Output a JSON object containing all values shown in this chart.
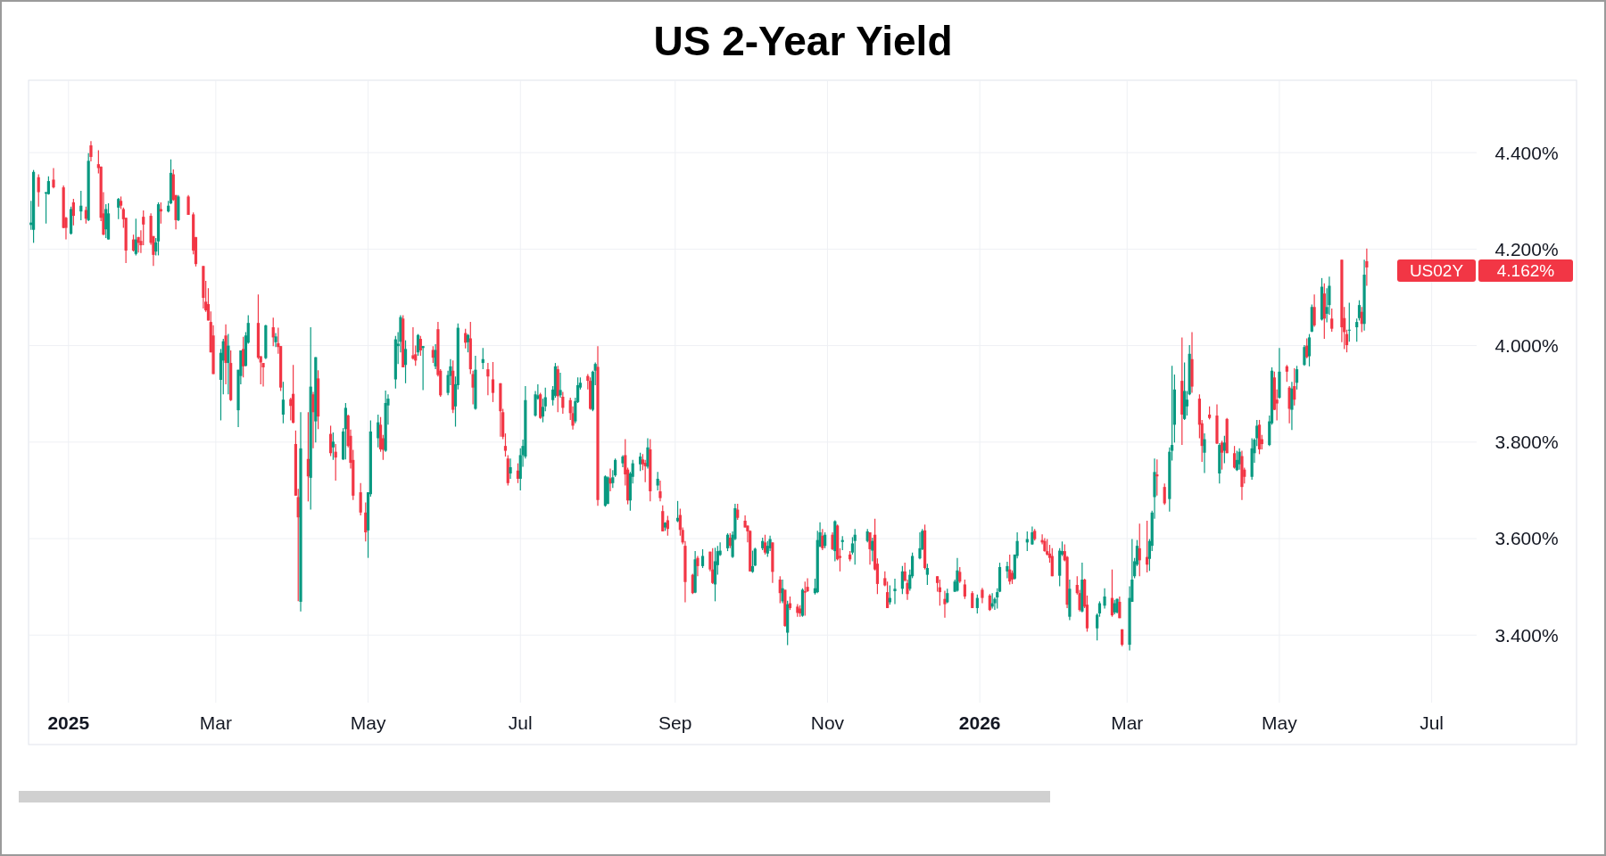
{
  "chart_data": {
    "type": "candlestick",
    "title": "US 2-Year Yield",
    "x": [
      "2024-12-17",
      "2024-12-18",
      "2024-12-20",
      "2024-12-23",
      "2024-12-24",
      "2024-12-26",
      "2024-12-30",
      "2024-12-31",
      "2025-01-02",
      "2025-01-03",
      "2025-01-06",
      "2025-01-08",
      "2025-01-09",
      "2025-01-10",
      "2025-01-13",
      "2025-01-14",
      "2025-01-15",
      "2025-01-16",
      "2025-01-17",
      "2025-01-21",
      "2025-01-22",
      "2025-01-23",
      "2025-01-24",
      "2025-01-27",
      "2025-01-28",
      "2025-01-29",
      "2025-01-30",
      "2025-01-31",
      "2025-02-03",
      "2025-02-04",
      "2025-02-05",
      "2025-02-06",
      "2025-02-07",
      "2025-02-10",
      "2025-02-11",
      "2025-02-12",
      "2025-02-13",
      "2025-02-14",
      "2025-02-18",
      "2025-02-20",
      "2025-02-21",
      "2025-02-24",
      "2025-02-25",
      "2025-02-26",
      "2025-02-27",
      "2025-02-28",
      "2025-03-03",
      "2025-03-04",
      "2025-03-05",
      "2025-03-06",
      "2025-03-07",
      "2025-03-10",
      "2025-03-11",
      "2025-03-12",
      "2025-03-13",
      "2025-03-14",
      "2025-03-18",
      "2025-03-19",
      "2025-03-20",
      "2025-03-21",
      "2025-03-24",
      "2025-03-25",
      "2025-03-26",
      "2025-03-27",
      "2025-03-28",
      "2025-03-31",
      "2025-04-01",
      "2025-04-02",
      "2025-04-03",
      "2025-04-04",
      "2025-04-07",
      "2025-04-08",
      "2025-04-09",
      "2025-04-10",
      "2025-04-11",
      "2025-04-16",
      "2025-04-17",
      "2025-04-18",
      "2025-04-21",
      "2025-04-22",
      "2025-04-23",
      "2025-04-24",
      "2025-04-25",
      "2025-04-28",
      "2025-04-30",
      "2025-05-01",
      "2025-05-02",
      "2025-05-05",
      "2025-05-06",
      "2025-05-07",
      "2025-05-08",
      "2025-05-09",
      "2025-05-12",
      "2025-05-13",
      "2025-05-14",
      "2025-05-15",
      "2025-05-16",
      "2025-05-19",
      "2025-05-20",
      "2025-05-21",
      "2025-05-22",
      "2025-05-23",
      "2025-05-27",
      "2025-05-28",
      "2025-05-29",
      "2025-05-30",
      "2025-06-02",
      "2025-06-03",
      "2025-06-04",
      "2025-06-05",
      "2025-06-06",
      "2025-06-09",
      "2025-06-10",
      "2025-06-11",
      "2025-06-12",
      "2025-06-13",
      "2025-06-16",
      "2025-06-18",
      "2025-06-20",
      "2025-06-23",
      "2025-06-24",
      "2025-06-25",
      "2025-06-26",
      "2025-06-27",
      "2025-06-30",
      "2025-07-01",
      "2025-07-02",
      "2025-07-03",
      "2025-07-07",
      "2025-07-08",
      "2025-07-09",
      "2025-07-10",
      "2025-07-11",
      "2025-07-14",
      "2025-07-15",
      "2025-07-16",
      "2025-07-17",
      "2025-07-18",
      "2025-07-21",
      "2025-07-22",
      "2025-07-23",
      "2025-07-24",
      "2025-07-25",
      "2025-07-28",
      "2025-07-29",
      "2025-07-30",
      "2025-07-31",
      "2025-08-01",
      "2025-08-04",
      "2025-08-05",
      "2025-08-06",
      "2025-08-07",
      "2025-08-08",
      "2025-08-11",
      "2025-08-12",
      "2025-08-13",
      "2025-08-14",
      "2025-08-15",
      "2025-08-18",
      "2025-08-19",
      "2025-08-20",
      "2025-08-21",
      "2025-08-22",
      "2025-08-25",
      "2025-08-26",
      "2025-08-27",
      "2025-08-28",
      "2025-08-29",
      "2025-09-02",
      "2025-09-03",
      "2025-09-04",
      "2025-09-05",
      "2025-09-08",
      "2025-09-09",
      "2025-09-10",
      "2025-09-12",
      "2025-09-15",
      "2025-09-16",
      "2025-09-17",
      "2025-09-18",
      "2025-09-19",
      "2025-09-22",
      "2025-09-23",
      "2025-09-24",
      "2025-09-25",
      "2025-09-26",
      "2025-09-29",
      "2025-09-30",
      "2025-10-01",
      "2025-10-02",
      "2025-10-03",
      "2025-10-06",
      "2025-10-07",
      "2025-10-08",
      "2025-10-09",
      "2025-10-10",
      "2025-10-13",
      "2025-10-14",
      "2025-10-15",
      "2025-10-16",
      "2025-10-17",
      "2025-10-20",
      "2025-10-21",
      "2025-10-22",
      "2025-10-23",
      "2025-10-24",
      "2025-10-27",
      "2025-10-28",
      "2025-10-29",
      "2025-10-30",
      "2025-10-31",
      "2025-11-03",
      "2025-11-04",
      "2025-11-05",
      "2025-11-06",
      "2025-11-07",
      "2025-11-10",
      "2025-11-11",
      "2025-11-12",
      "2025-11-17",
      "2025-11-18",
      "2025-11-19",
      "2025-11-20",
      "2025-11-21",
      "2025-11-24",
      "2025-11-25",
      "2025-11-26",
      "2025-11-28",
      "2025-12-01",
      "2025-12-02",
      "2025-12-03",
      "2025-12-04",
      "2025-12-05",
      "2025-12-08",
      "2025-12-09",
      "2025-12-10",
      "2025-12-11",
      "2025-12-15",
      "2025-12-16",
      "2025-12-18",
      "2025-12-19",
      "2025-12-22",
      "2025-12-23",
      "2025-12-24",
      "2025-12-26",
      "2025-12-29",
      "2025-12-31",
      "2026-01-02",
      "2026-01-05",
      "2026-01-06",
      "2026-01-07",
      "2026-01-08",
      "2026-01-09",
      "2026-01-12",
      "2026-01-13",
      "2026-01-14",
      "2026-01-15",
      "2026-01-16",
      "2026-01-20",
      "2026-01-22",
      "2026-01-23",
      "2026-01-26",
      "2026-01-27",
      "2026-01-28",
      "2026-01-29",
      "2026-01-30",
      "2026-02-02",
      "2026-02-03",
      "2026-02-04",
      "2026-02-05",
      "2026-02-06",
      "2026-02-09",
      "2026-02-10",
      "2026-02-11",
      "2026-02-12",
      "2026-02-13",
      "2026-02-17",
      "2026-02-18",
      "2026-02-20",
      "2026-02-23",
      "2026-02-24",
      "2026-02-25",
      "2026-02-26",
      "2026-02-27",
      "2026-03-02",
      "2026-03-03",
      "2026-03-04",
      "2026-03-05",
      "2026-03-06",
      "2026-03-09",
      "2026-03-10",
      "2026-03-11",
      "2026-03-12",
      "2026-03-13",
      "2026-03-16",
      "2026-03-18",
      "2026-03-19",
      "2026-03-20",
      "2026-03-23",
      "2026-03-24",
      "2026-03-25",
      "2026-03-26",
      "2026-03-27",
      "2026-03-30",
      "2026-03-31",
      "2026-04-01",
      "2026-04-03",
      "2026-04-06",
      "2026-04-07",
      "2026-04-08",
      "2026-04-09",
      "2026-04-10",
      "2026-04-13",
      "2026-04-14",
      "2026-04-15",
      "2026-04-16",
      "2026-04-17",
      "2026-04-20",
      "2026-04-21",
      "2026-04-22",
      "2026-04-23",
      "2026-04-24",
      "2026-04-27",
      "2026-04-28",
      "2026-04-29",
      "2026-04-30",
      "2026-05-01",
      "2026-05-04",
      "2026-05-05",
      "2026-05-06",
      "2026-05-07",
      "2026-05-08",
      "2026-05-11",
      "2026-05-12",
      "2026-05-13",
      "2026-05-14",
      "2026-05-15",
      "2026-05-18",
      "2026-05-19",
      "2026-05-20",
      "2026-05-21",
      "2026-05-22",
      "2026-05-26",
      "2026-05-27",
      "2026-05-28",
      "2026-05-29",
      "2026-06-01",
      "2026-06-02",
      "2026-06-03",
      "2026-06-04",
      "2026-06-05"
    ],
    "ohlc": [
      [
        4.25,
        4.3,
        4.24,
        4.255
      ],
      [
        4.24,
        4.364,
        4.213,
        4.36
      ],
      [
        4.349,
        4.355,
        4.288,
        4.318
      ],
      [
        4.315,
        4.318,
        4.253,
        4.318
      ],
      [
        4.314,
        4.351,
        4.313,
        4.341
      ],
      [
        4.344,
        4.368,
        4.326,
        4.328
      ],
      [
        4.328,
        4.332,
        4.243,
        4.244
      ],
      [
        4.265,
        4.267,
        4.22,
        4.244
      ],
      [
        4.232,
        4.288,
        4.23,
        4.283
      ],
      [
        4.297,
        4.304,
        4.249,
        4.269
      ],
      [
        4.278,
        4.321,
        4.26,
        4.29
      ],
      [
        4.281,
        4.288,
        4.253,
        4.263
      ],
      [
        4.26,
        4.399,
        4.258,
        4.383
      ],
      [
        4.415,
        4.424,
        4.382,
        4.391
      ],
      [
        4.376,
        4.405,
        4.357,
        4.368
      ],
      [
        4.371,
        4.371,
        4.258,
        4.265
      ],
      [
        4.274,
        4.318,
        4.229,
        4.23
      ],
      [
        4.241,
        4.293,
        4.223,
        4.283
      ],
      [
        4.22,
        4.295,
        4.22,
        4.274
      ],
      [
        4.286,
        4.306,
        4.262,
        4.304
      ],
      [
        4.3,
        4.309,
        4.283,
        4.29
      ],
      [
        4.283,
        4.286,
        4.244,
        4.262
      ],
      [
        4.265,
        4.265,
        4.171,
        4.197
      ],
      [
        4.22,
        4.23,
        4.195,
        4.197
      ],
      [
        4.19,
        4.263,
        4.187,
        4.22
      ],
      [
        4.225,
        4.225,
        4.193,
        4.213
      ],
      [
        4.217,
        4.239,
        4.192,
        4.208
      ],
      [
        4.267,
        4.28,
        4.208,
        4.251
      ],
      [
        4.269,
        4.274,
        4.209,
        4.213
      ],
      [
        4.227,
        4.227,
        4.165,
        4.188
      ],
      [
        4.195,
        4.223,
        4.187,
        4.214
      ],
      [
        4.216,
        4.297,
        4.187,
        4.293
      ],
      [
        4.283,
        4.297,
        4.253,
        4.278
      ],
      [
        4.278,
        4.3,
        4.276,
        4.29
      ],
      [
        4.295,
        4.386,
        4.293,
        4.358
      ],
      [
        4.355,
        4.365,
        4.3,
        4.302
      ],
      [
        4.312,
        4.312,
        4.241,
        4.26
      ],
      [
        4.26,
        4.312,
        4.258,
        4.309
      ],
      [
        4.309,
        4.312,
        4.271,
        4.271
      ],
      [
        4.272,
        4.276,
        4.189,
        4.197
      ],
      [
        4.225,
        4.225,
        4.164,
        4.169
      ],
      [
        4.165,
        4.165,
        4.077,
        4.099
      ],
      [
        4.091,
        4.134,
        4.07,
        4.073
      ],
      [
        4.086,
        4.119,
        4.052,
        4.052
      ],
      [
        4.049,
        4.071,
        3.986,
        3.986
      ],
      [
        4.021,
        4.042,
        3.941,
        3.941
      ],
      [
        3.929,
        3.993,
        3.845,
        3.985
      ],
      [
        3.969,
        4.014,
        3.899,
        4.009
      ],
      [
        4.021,
        4.044,
        3.92,
        3.964
      ],
      [
        3.964,
        4.024,
        3.899,
        4.0
      ],
      [
        3.964,
        3.99,
        3.885,
        3.887
      ],
      [
        3.866,
        3.95,
        3.831,
        3.95
      ],
      [
        3.937,
        3.99,
        3.92,
        3.99
      ],
      [
        3.993,
        4.018,
        3.934,
        3.957
      ],
      [
        3.958,
        4.028,
        3.957,
        4.021
      ],
      [
        4.006,
        4.063,
        4.004,
        4.047
      ],
      [
        4.047,
        4.106,
        3.972,
        3.975
      ],
      [
        3.978,
        3.978,
        3.92,
        3.965
      ],
      [
        3.964,
        3.964,
        3.915,
        3.955
      ],
      [
        3.974,
        4.043,
        3.972,
        4.042
      ],
      [
        4.038,
        4.058,
        3.999,
        4.017
      ],
      [
        4.007,
        4.026,
        3.997,
        4.019
      ],
      [
        4.005,
        4.037,
        3.983,
        3.997
      ],
      [
        3.999,
        3.999,
        3.906,
        3.913
      ],
      [
        3.857,
        3.925,
        3.839,
        3.888
      ],
      [
        3.889,
        3.892,
        3.845,
        3.875
      ],
      [
        3.9,
        3.96,
        3.839,
        3.84
      ],
      [
        3.796,
        3.824,
        3.689,
        3.689
      ],
      [
        3.686,
        3.703,
        3.47,
        3.644
      ],
      [
        3.469,
        3.862,
        3.449,
        3.787
      ],
      [
        3.765,
        3.862,
        3.677,
        3.729
      ],
      [
        3.726,
        4.038,
        3.66,
        3.915
      ],
      [
        3.899,
        3.904,
        3.787,
        3.862
      ],
      [
        3.843,
        3.976,
        3.799,
        3.976
      ],
      [
        3.932,
        3.949,
        3.827,
        3.853
      ],
      [
        3.817,
        3.834,
        3.771,
        3.777
      ],
      [
        3.789,
        3.82,
        3.763,
        3.801
      ],
      [
        3.78,
        3.796,
        3.72,
        3.768
      ],
      [
        3.764,
        3.829,
        3.763,
        3.822
      ],
      [
        3.827,
        3.881,
        3.764,
        3.871
      ],
      [
        3.855,
        3.857,
        3.789,
        3.792
      ],
      [
        3.813,
        3.826,
        3.745,
        3.757
      ],
      [
        3.763,
        3.784,
        3.68,
        3.689
      ],
      [
        3.696,
        3.715,
        3.648,
        3.654
      ],
      [
        3.654,
        3.675,
        3.594,
        3.613
      ],
      [
        3.617,
        3.696,
        3.56,
        3.696
      ],
      [
        3.692,
        3.845,
        3.687,
        3.822
      ],
      [
        3.808,
        3.857,
        3.789,
        3.841
      ],
      [
        3.836,
        3.852,
        3.78,
        3.785
      ],
      [
        3.808,
        3.815,
        3.763,
        3.784
      ],
      [
        3.782,
        3.907,
        3.78,
        3.881
      ],
      [
        3.876,
        3.899,
        3.836,
        3.89
      ],
      [
        3.93,
        4.02,
        3.911,
        4.013
      ],
      [
        3.999,
        4.028,
        3.962,
        4.004
      ],
      [
        4.008,
        4.063,
        3.986,
        4.059
      ],
      [
        4.056,
        4.063,
        3.955,
        3.955
      ],
      [
        3.96,
        4.011,
        3.922,
        3.993
      ],
      [
        3.98,
        4.038,
        3.971,
        3.973
      ],
      [
        3.982,
        4.0,
        3.958,
        3.969
      ],
      [
        3.986,
        4.024,
        3.979,
        4.022
      ],
      [
        4.014,
        4.02,
        3.979,
        3.99
      ],
      [
        3.995,
        3.999,
        3.908,
        3.999
      ],
      [
        3.991,
        3.999,
        3.964,
        3.975
      ],
      [
        3.957,
        4.003,
        3.951,
        3.991
      ],
      [
        4.034,
        4.049,
        3.936,
        3.939
      ],
      [
        3.948,
        3.951,
        3.894,
        3.897
      ],
      [
        3.902,
        3.948,
        3.897,
        3.939
      ],
      [
        3.937,
        3.972,
        3.918,
        3.957
      ],
      [
        3.948,
        3.969,
        3.86,
        3.867
      ],
      [
        3.874,
        3.936,
        3.832,
        3.92
      ],
      [
        3.918,
        4.046,
        3.909,
        4.037
      ],
      [
        4.026,
        4.035,
        3.994,
        4.006
      ],
      [
        4.007,
        4.024,
        3.986,
        4.022
      ],
      [
        4.015,
        4.049,
        3.941,
        3.951
      ],
      [
        3.941,
        3.948,
        3.878,
        3.913
      ],
      [
        3.869,
        3.979,
        3.867,
        3.95
      ],
      [
        3.964,
        3.995,
        3.951,
        3.972
      ],
      [
        3.951,
        3.964,
        3.897,
        3.936
      ],
      [
        3.93,
        3.966,
        3.883,
        3.902
      ],
      [
        3.922,
        3.922,
        3.811,
        3.864
      ],
      [
        3.862,
        3.869,
        3.806,
        3.811
      ],
      [
        3.792,
        3.818,
        3.77,
        3.782
      ],
      [
        3.766,
        3.773,
        3.71,
        3.715
      ],
      [
        3.735,
        3.766,
        3.724,
        3.748
      ],
      [
        3.741,
        3.756,
        3.715,
        3.724
      ],
      [
        3.724,
        3.787,
        3.7,
        3.773
      ],
      [
        3.773,
        3.805,
        3.749,
        3.792
      ],
      [
        3.77,
        3.916,
        3.766,
        3.887
      ],
      [
        3.855,
        3.906,
        3.853,
        3.899
      ],
      [
        3.89,
        3.92,
        3.888,
        3.897
      ],
      [
        3.899,
        3.902,
        3.848,
        3.85
      ],
      [
        3.853,
        3.89,
        3.841,
        3.873
      ],
      [
        3.874,
        3.913,
        3.864,
        3.893
      ],
      [
        3.887,
        3.916,
        3.876,
        3.909
      ],
      [
        3.896,
        3.964,
        3.892,
        3.957
      ],
      [
        3.951,
        3.958,
        3.862,
        3.895
      ],
      [
        3.897,
        3.944,
        3.892,
        3.908
      ],
      [
        3.894,
        3.904,
        3.859,
        3.871
      ],
      [
        3.887,
        3.892,
        3.846,
        3.86
      ],
      [
        3.86,
        3.874,
        3.826,
        3.834
      ],
      [
        3.843,
        3.892,
        3.839,
        3.885
      ],
      [
        3.883,
        3.934,
        3.881,
        3.918
      ],
      [
        3.913,
        3.934,
        3.909,
        3.923
      ],
      [
        3.937,
        3.941,
        3.909,
        3.927
      ],
      [
        3.927,
        3.934,
        3.867,
        3.869
      ],
      [
        3.867,
        3.948,
        3.864,
        3.946
      ],
      [
        3.948,
        3.965,
        3.918,
        3.962
      ],
      [
        3.956,
        3.999,
        3.668,
        3.68
      ],
      [
        3.668,
        3.731,
        3.666,
        3.729
      ],
      [
        3.672,
        3.729,
        3.671,
        3.727
      ],
      [
        3.725,
        3.745,
        3.698,
        3.714
      ],
      [
        3.715,
        3.742,
        3.705,
        3.727
      ],
      [
        3.731,
        3.766,
        3.728,
        3.763
      ],
      [
        3.756,
        3.773,
        3.748,
        3.77
      ],
      [
        3.773,
        3.806,
        3.71,
        3.733
      ],
      [
        3.743,
        3.747,
        3.671,
        3.679
      ],
      [
        3.679,
        3.738,
        3.658,
        3.735
      ],
      [
        3.728,
        3.763,
        3.714,
        3.756
      ],
      [
        3.754,
        3.778,
        3.74,
        3.77
      ],
      [
        3.764,
        3.775,
        3.742,
        3.754
      ],
      [
        3.757,
        3.763,
        3.717,
        3.75
      ],
      [
        3.749,
        3.808,
        3.745,
        3.789
      ],
      [
        3.785,
        3.806,
        3.677,
        3.698
      ],
      [
        3.71,
        3.738,
        3.7,
        3.724
      ],
      [
        3.698,
        3.72,
        3.677,
        3.684
      ],
      [
        3.657,
        3.669,
        3.615,
        3.615
      ],
      [
        3.623,
        3.634,
        3.616,
        3.633
      ],
      [
        3.638,
        3.647,
        3.606,
        3.62
      ],
      [
        3.636,
        3.678,
        3.634,
        3.643
      ],
      [
        3.649,
        3.662,
        3.606,
        3.618
      ],
      [
        3.618,
        3.623,
        3.588,
        3.592
      ],
      [
        3.585,
        3.595,
        3.468,
        3.51
      ],
      [
        3.525,
        3.527,
        3.485,
        3.487
      ],
      [
        3.488,
        3.574,
        3.487,
        3.557
      ],
      [
        3.56,
        3.564,
        3.522,
        3.543
      ],
      [
        3.543,
        3.578,
        3.539,
        3.564
      ],
      [
        3.573,
        3.573,
        3.532,
        3.536
      ],
      [
        3.536,
        3.58,
        3.506,
        3.508
      ],
      [
        3.505,
        3.581,
        3.47,
        3.553
      ],
      [
        3.545,
        3.585,
        3.525,
        3.574
      ],
      [
        3.566,
        3.592,
        3.564,
        3.575
      ],
      [
        3.58,
        3.611,
        3.574,
        3.608
      ],
      [
        3.602,
        3.611,
        3.58,
        3.585
      ],
      [
        3.562,
        3.615,
        3.56,
        3.608
      ],
      [
        3.599,
        3.672,
        3.597,
        3.663
      ],
      [
        3.66,
        3.672,
        3.639,
        3.643
      ],
      [
        3.637,
        3.648,
        3.623,
        3.623
      ],
      [
        3.627,
        3.627,
        3.592,
        3.615
      ],
      [
        3.616,
        3.617,
        3.532,
        3.532
      ],
      [
        3.531,
        3.575,
        3.529,
        3.543
      ],
      [
        3.544,
        3.581,
        3.543,
        3.579
      ],
      [
        3.58,
        3.602,
        3.576,
        3.595
      ],
      [
        3.592,
        3.608,
        3.567,
        3.571
      ],
      [
        3.569,
        3.595,
        3.562,
        3.585
      ],
      [
        3.58,
        3.606,
        3.574,
        3.599
      ],
      [
        3.592,
        3.592,
        3.508,
        3.531
      ],
      [
        3.515,
        3.522,
        3.466,
        3.487
      ],
      [
        3.47,
        3.515,
        3.466,
        3.497
      ],
      [
        3.494,
        3.494,
        3.417,
        3.419
      ],
      [
        3.405,
        3.471,
        3.379,
        3.464
      ],
      [
        3.466,
        3.48,
        3.452,
        3.456
      ],
      [
        3.459,
        3.464,
        3.438,
        3.446
      ],
      [
        3.455,
        3.462,
        3.438,
        3.445
      ],
      [
        3.44,
        3.497,
        3.438,
        3.494
      ],
      [
        3.491,
        3.511,
        3.44,
        3.488
      ],
      [
        3.5,
        3.518,
        3.489,
        3.491
      ],
      [
        3.487,
        3.517,
        3.484,
        3.497
      ],
      [
        3.489,
        3.616,
        3.487,
        3.597
      ],
      [
        3.583,
        3.634,
        3.583,
        3.613
      ],
      [
        3.606,
        3.62,
        3.576,
        3.58
      ],
      [
        3.585,
        3.613,
        3.58,
        3.608
      ],
      [
        3.608,
        3.613,
        3.576,
        3.578
      ],
      [
        3.574,
        3.638,
        3.553,
        3.636
      ],
      [
        3.627,
        3.629,
        3.555,
        3.557
      ],
      [
        3.564,
        3.58,
        3.532,
        3.56
      ],
      [
        3.593,
        3.605,
        3.576,
        3.597
      ],
      [
        3.567,
        3.574,
        3.553,
        3.557
      ],
      [
        3.571,
        3.603,
        3.567,
        3.59
      ],
      [
        3.595,
        3.62,
        3.546,
        3.608
      ],
      [
        3.595,
        3.62,
        3.592,
        3.615
      ],
      [
        3.613,
        3.613,
        3.546,
        3.578
      ],
      [
        3.575,
        3.602,
        3.553,
        3.595
      ],
      [
        3.608,
        3.641,
        3.534,
        3.536
      ],
      [
        3.548,
        3.559,
        3.485,
        3.506
      ],
      [
        3.518,
        3.532,
        3.501,
        3.503
      ],
      [
        3.489,
        3.511,
        3.456,
        3.456
      ],
      [
        3.468,
        3.503,
        3.463,
        3.477
      ],
      [
        3.491,
        3.517,
        3.464,
        3.496
      ],
      [
        3.496,
        3.543,
        3.485,
        3.532
      ],
      [
        3.532,
        3.55,
        3.511,
        3.513
      ],
      [
        3.508,
        3.515,
        3.473,
        3.485
      ],
      [
        3.496,
        3.536,
        3.492,
        3.525
      ],
      [
        3.522,
        3.571,
        3.518,
        3.564
      ],
      [
        3.559,
        3.613,
        3.557,
        3.58
      ],
      [
        3.578,
        3.62,
        3.576,
        3.616
      ],
      [
        3.617,
        3.629,
        3.536,
        3.539
      ],
      [
        3.525,
        3.548,
        3.504,
        3.539
      ],
      [
        3.522,
        3.522,
        3.49,
        3.508
      ],
      [
        3.499,
        3.515,
        3.461,
        3.489
      ],
      [
        3.475,
        3.492,
        3.436,
        3.464
      ],
      [
        3.468,
        3.496,
        3.466,
        3.487
      ],
      [
        3.49,
        3.515,
        3.489,
        3.511
      ],
      [
        3.492,
        3.56,
        3.49,
        3.534
      ],
      [
        3.531,
        3.541,
        3.508,
        3.511
      ],
      [
        3.505,
        3.515,
        3.475,
        3.48
      ],
      [
        3.487,
        3.491,
        3.456,
        3.456
      ],
      [
        3.456,
        3.484,
        3.445,
        3.477
      ],
      [
        3.494,
        3.498,
        3.466,
        3.477
      ],
      [
        3.482,
        3.485,
        3.45,
        3.452
      ],
      [
        3.459,
        3.487,
        3.455,
        3.466
      ],
      [
        3.466,
        3.478,
        3.452,
        3.475
      ],
      [
        3.478,
        3.497,
        3.455,
        3.489
      ],
      [
        3.49,
        3.55,
        3.489,
        3.541
      ],
      [
        3.532,
        3.552,
        3.518,
        3.543
      ],
      [
        3.536,
        3.567,
        3.505,
        3.511
      ],
      [
        3.529,
        3.534,
        3.506,
        3.515
      ],
      [
        3.517,
        3.567,
        3.515,
        3.567
      ],
      [
        3.564,
        3.613,
        3.559,
        3.595
      ],
      [
        3.592,
        3.615,
        3.574,
        3.599
      ],
      [
        3.588,
        3.625,
        3.587,
        3.613
      ],
      [
        3.616,
        3.62,
        3.596,
        3.599
      ],
      [
        3.597,
        3.609,
        3.588,
        3.592
      ],
      [
        3.595,
        3.601,
        3.573,
        3.574
      ],
      [
        3.574,
        3.599,
        3.565,
        3.567
      ],
      [
        3.569,
        3.587,
        3.55,
        3.56
      ],
      [
        3.564,
        3.58,
        3.522,
        3.522
      ],
      [
        3.523,
        3.58,
        3.501,
        3.575
      ],
      [
        3.567,
        3.594,
        3.564,
        3.574
      ],
      [
        3.574,
        3.588,
        3.553,
        3.555
      ],
      [
        3.562,
        3.564,
        3.456,
        3.463
      ],
      [
        3.438,
        3.515,
        3.431,
        3.496
      ],
      [
        3.504,
        3.522,
        3.484,
        3.487
      ],
      [
        3.487,
        3.494,
        3.449,
        3.452
      ],
      [
        3.449,
        3.55,
        3.447,
        3.515
      ],
      [
        3.515,
        3.517,
        3.456,
        3.459
      ],
      [
        3.463,
        3.482,
        3.407,
        3.414
      ],
      [
        3.414,
        3.445,
        3.389,
        3.442
      ],
      [
        3.445,
        3.47,
        3.438,
        3.466
      ],
      [
        3.461,
        3.497,
        3.455,
        3.48
      ],
      [
        3.477,
        3.536,
        3.438,
        3.441
      ],
      [
        3.447,
        3.473,
        3.443,
        3.466
      ],
      [
        3.447,
        3.476,
        3.445,
        3.475
      ],
      [
        3.469,
        3.48,
        3.435,
        3.435
      ],
      [
        3.412,
        3.412,
        3.377,
        3.38
      ],
      [
        3.38,
        3.501,
        3.368,
        3.477
      ],
      [
        3.469,
        3.599,
        3.469,
        3.515
      ],
      [
        3.522,
        3.56,
        3.518,
        3.553
      ],
      [
        3.546,
        3.597,
        3.543,
        3.585
      ],
      [
        3.58,
        3.631,
        3.522,
        3.555
      ],
      [
        3.562,
        3.637,
        3.53,
        3.546
      ],
      [
        3.558,
        3.599,
        3.533,
        3.595
      ],
      [
        3.585,
        3.658,
        3.574,
        3.654
      ],
      [
        3.686,
        3.766,
        3.641,
        3.738
      ],
      [
        3.733,
        3.764,
        3.689,
        3.729
      ],
      [
        3.707,
        3.714,
        3.67,
        3.673
      ],
      [
        3.682,
        3.789,
        3.656,
        3.78
      ],
      [
        3.782,
        3.958,
        3.762,
        3.794
      ],
      [
        3.836,
        3.94,
        3.799,
        3.909
      ],
      [
        3.927,
        4.017,
        3.794,
        3.857
      ],
      [
        3.848,
        3.965,
        3.846,
        3.906
      ],
      [
        3.874,
        3.906,
        3.855,
        3.888
      ],
      [
        3.899,
        4.001,
        3.897,
        3.983
      ],
      [
        3.972,
        4.028,
        3.902,
        3.915
      ],
      [
        3.89,
        3.899,
        3.808,
        3.836
      ],
      [
        3.839,
        3.846,
        3.759,
        3.792
      ],
      [
        3.778,
        3.818,
        3.736,
        3.806
      ],
      [
        3.857,
        3.874,
        3.847,
        3.85
      ],
      [
        3.855,
        3.878,
        3.796,
        3.797
      ],
      [
        3.735,
        3.798,
        3.714,
        3.794
      ],
      [
        3.799,
        3.803,
        3.743,
        3.778
      ],
      [
        3.782,
        3.813,
        3.756,
        3.799
      ],
      [
        3.848,
        3.85,
        3.777,
        3.777
      ],
      [
        3.777,
        3.792,
        3.745,
        3.747
      ],
      [
        3.742,
        3.782,
        3.74,
        3.763
      ],
      [
        3.754,
        3.787,
        3.743,
        3.78
      ],
      [
        3.771,
        3.782,
        3.68,
        3.707
      ],
      [
        3.743,
        3.747,
        3.714,
        3.728
      ],
      [
        3.728,
        3.808,
        3.722,
        3.787
      ],
      [
        3.777,
        3.808,
        3.757,
        3.805
      ],
      [
        3.808,
        3.846,
        3.792,
        3.834
      ],
      [
        3.836,
        3.846,
        3.775,
        3.785
      ],
      [
        3.806,
        3.815,
        3.785,
        3.796
      ],
      [
        3.794,
        3.855,
        3.792,
        3.843
      ],
      [
        3.839,
        3.955,
        3.836,
        3.948
      ],
      [
        3.934,
        3.946,
        3.866,
        3.867
      ],
      [
        3.888,
        3.909,
        3.845,
        3.88
      ],
      [
        3.892,
        3.995,
        3.89,
        3.946
      ],
      [
        3.957,
        3.96,
        3.925,
        3.946
      ],
      [
        3.913,
        3.916,
        3.839,
        3.869
      ],
      [
        3.867,
        3.925,
        3.825,
        3.911
      ],
      [
        3.916,
        3.953,
        3.876,
        3.888
      ],
      [
        3.923,
        3.958,
        3.909,
        3.951
      ],
      [
        3.96,
        4.001,
        3.958,
        3.997
      ],
      [
        4.0,
        4.015,
        3.974,
        3.976
      ],
      [
        3.978,
        4.024,
        3.957,
        4.017
      ],
      [
        4.029,
        4.085,
        4.028,
        4.08
      ],
      [
        4.08,
        4.106,
        4.039,
        4.042
      ],
      [
        4.054,
        4.14,
        4.052,
        4.122
      ],
      [
        4.108,
        4.129,
        4.014,
        4.056
      ],
      [
        4.066,
        4.119,
        4.048,
        4.08
      ],
      [
        4.084,
        4.143,
        4.064,
        4.124
      ],
      [
        4.056,
        4.077,
        4.029,
        4.035
      ],
      [
        4.178,
        4.178,
        4.007,
        4.038
      ],
      [
        4.057,
        4.08,
        3.993,
        4.028
      ],
      [
        4.024,
        4.033,
        3.986,
        4.001
      ],
      [
        4.031,
        4.089,
        4.008,
        4.033
      ],
      [
        4.038,
        4.056,
        4.008,
        4.049
      ],
      [
        4.057,
        4.094,
        4.052,
        4.084
      ],
      [
        4.07,
        4.08,
        4.028,
        4.045
      ],
      [
        4.045,
        4.178,
        4.031,
        4.147
      ],
      [
        4.175,
        4.201,
        4.124,
        4.162
      ]
    ],
    "xlim": [
      "2024-12-16",
      "2026-07-19"
    ],
    "ylim": [
      3.26,
      4.55
    ],
    "xticks": [
      {
        "value": "2025-01-01",
        "label": "2025"
      },
      {
        "value": "2025-03-01",
        "label": "Mar"
      },
      {
        "value": "2025-05-01",
        "label": "May"
      },
      {
        "value": "2025-07-01",
        "label": "Jul"
      },
      {
        "value": "2025-09-01",
        "label": "Sep"
      },
      {
        "value": "2025-11-01",
        "label": "Nov"
      },
      {
        "value": "2026-01-01",
        "label": "2026"
      },
      {
        "value": "2026-03-01",
        "label": "Mar"
      },
      {
        "value": "2026-05-01",
        "label": "May"
      },
      {
        "value": "2026-07-01",
        "label": "Jul"
      }
    ],
    "yticks": [
      {
        "value": 3.4,
        "label": "3.400%"
      },
      {
        "value": 3.6,
        "label": "3.600%"
      },
      {
        "value": 3.8,
        "label": "3.800%"
      },
      {
        "value": 4.0,
        "label": "4.000%"
      },
      {
        "value": 4.2,
        "label": "4.200%"
      },
      {
        "value": 4.4,
        "label": "4.400%"
      }
    ],
    "grid": true,
    "annotations": [
      "US02Y",
      "4.162%"
    ]
  }
}
